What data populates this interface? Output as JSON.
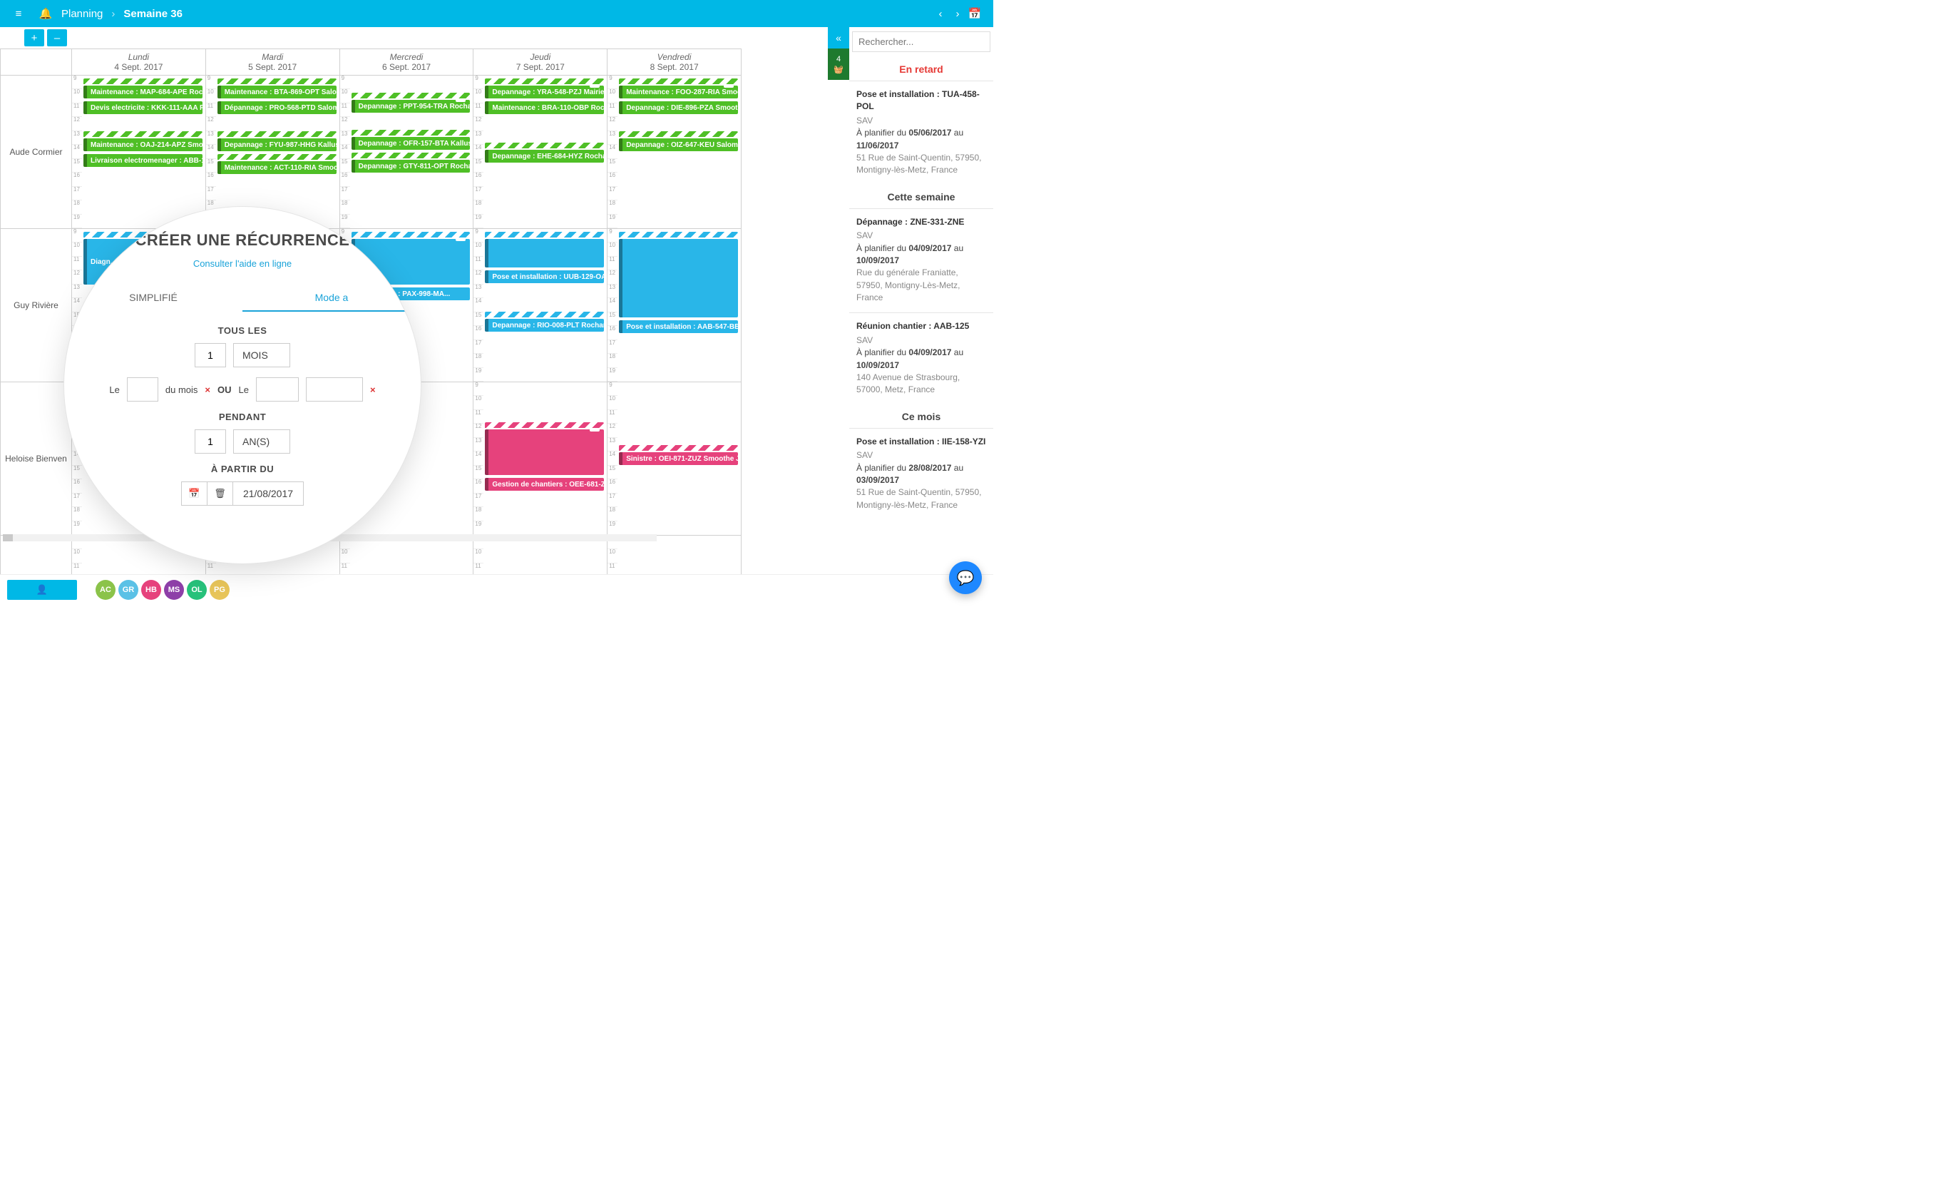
{
  "colors": {
    "brand": "#00b8e6",
    "green": "#4fbf26",
    "blue": "#29b6e8",
    "pink": "#e6427c",
    "danger": "#e53935"
  },
  "topbar": {
    "section": "Planning",
    "current": "Semaine 36"
  },
  "toolbar": {
    "plus": "+",
    "minus": "–"
  },
  "days": [
    {
      "name": "Lundi",
      "date": "4 Sept. 2017"
    },
    {
      "name": "Mardi",
      "date": "5 Sept. 2017"
    },
    {
      "name": "Mercredi",
      "date": "6 Sept. 2017"
    },
    {
      "name": "Jeudi",
      "date": "7 Sept. 2017"
    },
    {
      "name": "Vendredi",
      "date": "8 Sept. 2017"
    }
  ],
  "hours": [
    "9",
    "10",
    "11",
    "12",
    "13",
    "14",
    "15",
    "16",
    "17",
    "18",
    "19"
  ],
  "rows": [
    {
      "person": "Aude Cormier",
      "cells": [
        [
          {
            "c": "green",
            "h": 1,
            "t": "Maintenance : MAP-684-APE Roch..."
          },
          {
            "c": "green",
            "t": "Devis electricite : KKK-111-AAA R..."
          },
          {
            "gap": 1
          },
          {
            "c": "green",
            "h": 1,
            "t": "Maintenance : OAJ-214-APZ Smoo..."
          },
          {
            "c": "green",
            "t": "Livraison electromenager : ABB-1..."
          }
        ],
        [
          {
            "c": "green",
            "h": 1,
            "t": "Maintenance : BTA-869-OPT Salo..."
          },
          {
            "c": "green",
            "t": "Dépannage : PRO-568-PTD Salom..."
          },
          {
            "gap": 1
          },
          {
            "c": "green",
            "h": 1,
            "t": "Depannage : FYU-987-HHG Kallus ..."
          },
          {
            "c": "green",
            "h": 1,
            "t": "Maintenance : ACT-110-RIA Smooth..."
          }
        ],
        [
          {
            "gap": 1
          },
          {
            "c": "green",
            "h": 1,
            "env": 1,
            "t": "Depannage : PPT-954-TRA Rochar..."
          },
          {
            "gap": 1
          },
          {
            "c": "green",
            "h": 1,
            "t": "Depannage : OFR-157-BTA Kallus ..."
          },
          {
            "c": "green",
            "h": 1,
            "t": "Depannage : GTY-811-OPT Rochar..."
          }
        ],
        [
          {
            "c": "green",
            "h": 1,
            "env": 1,
            "t": "Depannage : YRA-548-PZJ Mairie d..."
          },
          {
            "c": "green",
            "t": "Maintenance : BRA-110-OBP Roch..."
          },
          {
            "gap": 2
          },
          {
            "c": "green",
            "h": 1,
            "t": "Depannage : EHE-684-HYZ Rochar..."
          }
        ],
        [
          {
            "c": "green",
            "h": 1,
            "env": 1,
            "t": "Maintenance : FOO-287-RIA Smoo..."
          },
          {
            "c": "green",
            "t": "Depannage : DIE-896-PZA Smooth..."
          },
          {
            "gap": 1
          },
          {
            "c": "green",
            "h": 1,
            "t": "Depannage : OIZ-647-KEU Salomo..."
          }
        ]
      ]
    },
    {
      "person": "Guy Rivière",
      "cells": [
        [
          {
            "c": "blue",
            "h": 1,
            "tall": "tall3",
            "t": "Diagn..."
          }
        ],
        [],
        [
          {
            "c": "blue",
            "h": 1,
            "env": 1,
            "tall": "tall3",
            "t": ""
          },
          {
            "c": "blue",
            "t": "   installation : PAX-998-MA..."
          }
        ],
        [
          {
            "c": "blue",
            "h": 1,
            "tall": "tall2",
            "t": ""
          },
          {
            "c": "blue",
            "t": "Pose et installation : UUB-129-OA..."
          },
          {
            "gap": 2
          },
          {
            "c": "blue",
            "h": 1,
            "t": "Depannage : RIO-008-PLT Rochar..."
          }
        ],
        [
          {
            "c": "blue",
            "h": 1,
            "tall": "tall4",
            "t": ""
          },
          {
            "c": "blue",
            "t": "Pose et installation : AAB-547-BBE..."
          }
        ]
      ]
    },
    {
      "person": "Heloise Bienven",
      "cells": [
        [],
        [],
        [],
        [
          {
            "gap": 3
          },
          {
            "c": "pink",
            "h": 1,
            "env": 1,
            "tall": "tall3",
            "t": ""
          },
          {
            "c": "pink",
            "t": "Gestion de chantiers : OEE-681-ZO..."
          }
        ],
        [
          {
            "gap": 5
          },
          {
            "c": "pink",
            "h": 1,
            "t": "Sinistre : OEI-871-ZUZ Smoothe Je..."
          }
        ]
      ]
    },
    {
      "person": "",
      "cells": [
        [],
        [],
        [],
        [],
        []
      ]
    }
  ],
  "sidebar": {
    "search_placeholder": "Rechercher...",
    "badge_count": "4",
    "sections": [
      {
        "title": "En retard",
        "late": true,
        "cards": [
          {
            "title": "Pose et installation : TUA-458-POL",
            "sub": "SAV",
            "dates_pre": "À planifier du ",
            "from": "05/06/2017",
            "mid": " au ",
            "to": "11/06/2017",
            "addr": "51 Rue de Saint-Quentin, 57950, Montigny-lès-Metz, France"
          }
        ]
      },
      {
        "title": "Cette semaine",
        "cards": [
          {
            "title": "Dépannage : ZNE-331-ZNE",
            "sub": "SAV",
            "dates_pre": "À planifier du ",
            "from": "04/09/2017",
            "mid": " au ",
            "to": "10/09/2017",
            "addr": "Rue du générale Franiatte, 57950, Montigny-Lès-Metz, France"
          },
          {
            "title": "Réunion chantier : AAB-125",
            "sub": "SAV",
            "dates_pre": "À planifier du ",
            "from": "04/09/2017",
            "mid": " au ",
            "to": "10/09/2017",
            "addr": "140 Avenue de Strasbourg, 57000, Metz, France"
          }
        ]
      },
      {
        "title": "Ce mois",
        "cards": [
          {
            "title": "Pose et installation : IIE-158-YZI",
            "sub": "SAV",
            "dates_pre": "À planifier du ",
            "from": "28/08/2017",
            "mid": " au ",
            "to": "03/09/2017",
            "addr": "51 Rue de Saint-Quentin, 57950, Montigny-lès-Metz, France"
          }
        ]
      }
    ]
  },
  "modal": {
    "title": "CRÉER UNE RÉCURRENCE",
    "help": "Consulter l'aide en ligne",
    "tab_simple": "SIMPLIFIÉ",
    "tab_adv": "Mode a",
    "every_label": "TOUS LES",
    "every_value": "1",
    "every_unit": "MOIS",
    "le": "Le",
    "du_mois": "du mois",
    "ou": "OU",
    "during_label": "PENDANT",
    "during_value": "1",
    "during_unit": "AN(S)",
    "from_label": "À PARTIR DU",
    "from_date": "21/08/2017"
  },
  "avatars": [
    {
      "t": "AC",
      "c": "#8bc34a"
    },
    {
      "t": "GR",
      "c": "#5bc1e6"
    },
    {
      "t": "HB",
      "c": "#e6427c"
    },
    {
      "t": "MS",
      "c": "#8e3fa8"
    },
    {
      "t": "OL",
      "c": "#27c17a"
    },
    {
      "t": "PG",
      "c": "#e8c55a"
    }
  ]
}
